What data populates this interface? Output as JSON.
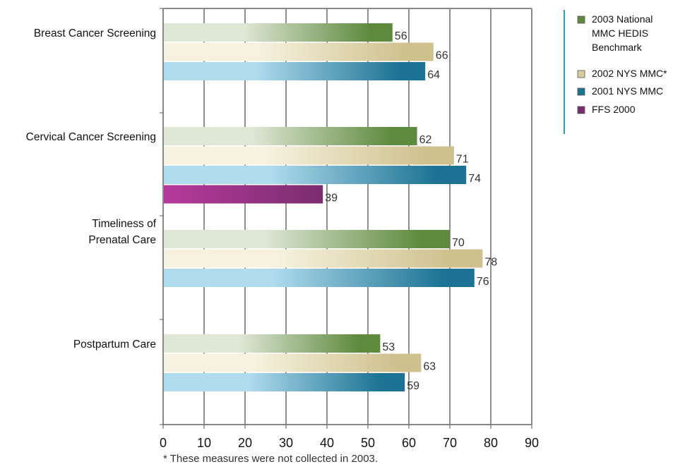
{
  "chart_data": {
    "type": "bar",
    "orientation": "horizontal",
    "categories": [
      [
        "Breast Cancer Screening"
      ],
      [
        "Cervical Cancer Screening"
      ],
      [
        "Timeliness of",
        "Prenatal Care"
      ],
      [
        "Postpartum Care"
      ]
    ],
    "series": [
      {
        "name": "2003 National MMC HEDIS Benchmark",
        "legend_lines": [
          "2003 National",
          "MMC HEDIS",
          "Benchmark"
        ],
        "values": [
          56,
          62,
          70,
          53
        ],
        "color": "#5e8a3e",
        "color_light": "#dfe7d6"
      },
      {
        "name": "2002 NYS MMC*",
        "legend_lines": [
          "2002 NYS MMC*"
        ],
        "values": [
          66,
          71,
          78,
          63
        ],
        "color": "#cfc18e",
        "color_light": "#f6f2df"
      },
      {
        "name": "2001 NYS MMC",
        "legend_lines": [
          "2001 NYS MMC"
        ],
        "values": [
          64,
          74,
          76,
          59
        ],
        "color": "#1c7393",
        "color_light": "#b0dcee"
      },
      {
        "name": "FFS 2000",
        "legend_lines": [
          "FFS 2000"
        ],
        "values": [
          null,
          39,
          null,
          null
        ],
        "color": "#7a2d6e",
        "color_light": "#b63a9c"
      }
    ],
    "xlim": [
      0,
      90
    ],
    "xticks": [
      "0",
      "10",
      "20",
      "30",
      "40",
      "50",
      "60",
      "70",
      "80",
      "90"
    ],
    "grid": true,
    "legend_position": "top-right",
    "footnote": "* These measures were not collected in 2003."
  }
}
